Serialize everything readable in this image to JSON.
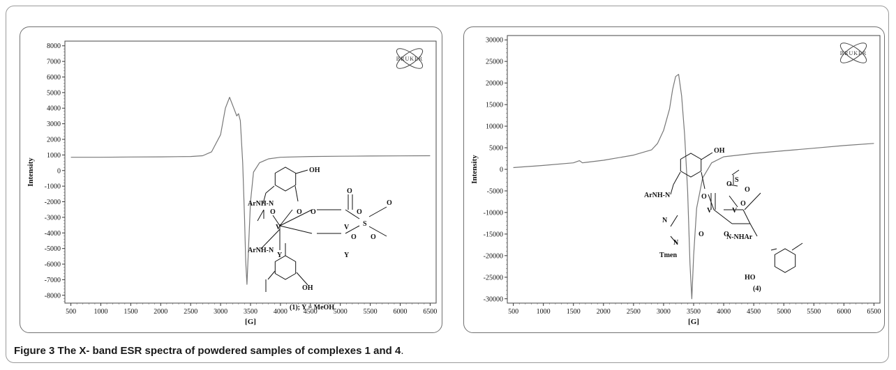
{
  "caption": {
    "label": "Figure 3",
    "text": "The X- band ESR spectra of powdered samples of complexes 1 and 4",
    "period": "."
  },
  "chart_data": [
    {
      "type": "line",
      "xlabel": "[G]",
      "ylabel": "Intensity",
      "xlim": [
        400,
        6600
      ],
      "ylim": [
        -8500,
        8300
      ],
      "x_ticks": [
        500,
        1000,
        1500,
        2000,
        2500,
        3000,
        3500,
        4000,
        4500,
        5000,
        5500,
        6000,
        6500
      ],
      "y_ticks": [
        8000,
        7000,
        6000,
        5000,
        4000,
        3000,
        2000,
        1000,
        0,
        -1000,
        -2000,
        -3000,
        -4000,
        -5000,
        -6000,
        -7000,
        -8000
      ],
      "logo": "BRUKER",
      "series": [
        {
          "x": [
            500,
            1000,
            1500,
            2000,
            2500,
            2700,
            2850,
            3000,
            3080,
            3150,
            3220,
            3270,
            3300,
            3330,
            3370,
            3400,
            3420,
            3440,
            3460,
            3500,
            3550,
            3650,
            3800,
            4000,
            4500,
            5000,
            5500,
            6000,
            6500
          ],
          "y": [
            850,
            850,
            870,
            880,
            900,
            950,
            1200,
            2300,
            4000,
            4700,
            4000,
            3500,
            3650,
            3200,
            500,
            -3000,
            -5800,
            -7300,
            -5500,
            -2000,
            -100,
            500,
            750,
            850,
            900,
            920,
            930,
            940,
            950
          ]
        }
      ],
      "structure": {
        "labels": [
          "OH",
          "ArNH-N",
          "ArNH-N",
          "O",
          "O",
          "O",
          "O",
          "O",
          "O",
          "O",
          "O",
          "S",
          "V",
          "V",
          "Y",
          "Y",
          "OH"
        ],
        "caption": "(1); Y = MeOH"
      }
    },
    {
      "type": "line",
      "xlabel": "[G]",
      "ylabel": "Intensity",
      "xlim": [
        400,
        6600
      ],
      "ylim": [
        -31000,
        31000
      ],
      "x_ticks": [
        500,
        1000,
        1500,
        2000,
        2500,
        3000,
        3500,
        4000,
        4500,
        5000,
        5500,
        6000,
        6500
      ],
      "y_ticks": [
        30000,
        25000,
        20000,
        15000,
        10000,
        5000,
        0,
        -5000,
        -10000,
        -15000,
        -20000,
        -25000,
        -30000
      ],
      "logo": "BRUKER",
      "series": [
        {
          "x": [
            500,
            1000,
            1500,
            1600,
            1650,
            1700,
            2000,
            2500,
            2800,
            2900,
            3000,
            3100,
            3150,
            3200,
            3250,
            3300,
            3350,
            3400,
            3440,
            3470,
            3500,
            3550,
            3650,
            3800,
            4000,
            4500,
            5000,
            5500,
            6000,
            6500
          ],
          "y": [
            400,
            900,
            1500,
            2000,
            1500,
            1600,
            2100,
            3300,
            4500,
            6000,
            9000,
            14000,
            18500,
            21500,
            22000,
            17000,
            8000,
            -5000,
            -22000,
            -30000,
            -20000,
            -9000,
            -2000,
            1500,
            2900,
            3700,
            4300,
            4900,
            5500,
            6000
          ]
        }
      ],
      "structure": {
        "labels": [
          "OH",
          "ArNH-N",
          "O",
          "O",
          "O",
          "O",
          "O",
          "O",
          "S",
          "V",
          "V",
          "N",
          "N",
          "N-NHAr",
          "Tmen",
          "HO"
        ],
        "caption": "(4)"
      }
    }
  ]
}
